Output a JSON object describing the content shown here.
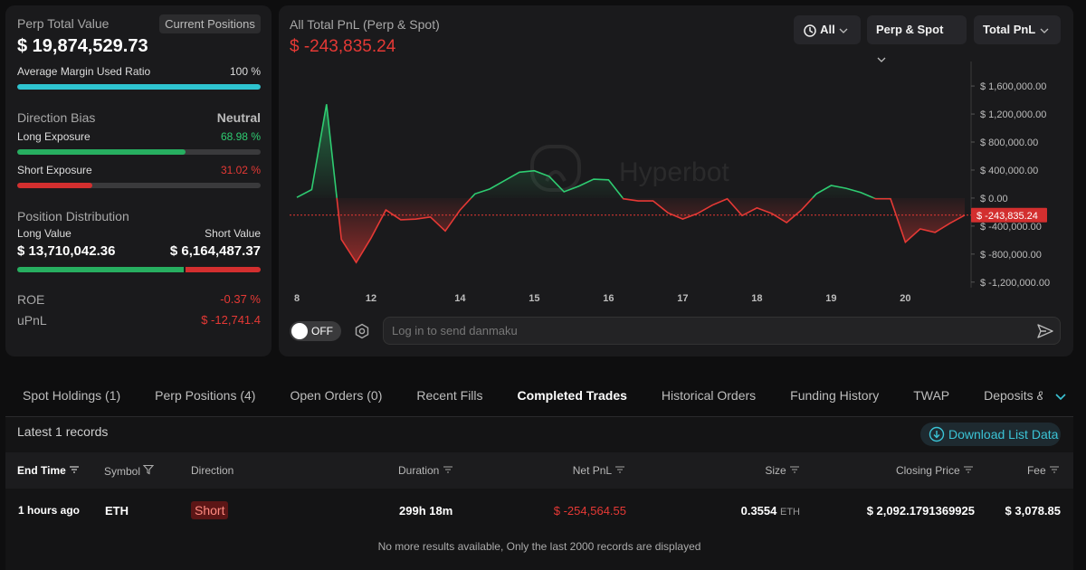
{
  "overview": {
    "perp_total_value_label": "Perp Total Value",
    "current_positions": "Current Positions",
    "perp_total_value": "$ 19,874,529.73",
    "margin": {
      "label": "Average Margin Used Ratio",
      "value": 100,
      "value_label": "100 %"
    },
    "direction_bias_label": "Direction Bias",
    "direction_bias": "Neutral",
    "long_exposure": {
      "label": "Long Exposure",
      "value": 68.98,
      "value_label": "68.98 %"
    },
    "short_exposure": {
      "label": "Short Exposure",
      "value": 31.02,
      "value_label": "31.02 %"
    },
    "distribution": {
      "title": "Position Distribution",
      "long_label": "Long Value",
      "short_label": "Short Value",
      "long_value": 13710042.36,
      "long_value_label": "$ 13,710,042.36",
      "short_value": 6164487.37,
      "short_value_label": "$ 6,164,487.37"
    },
    "roe": {
      "label": "ROE",
      "value": "-0.37 %"
    },
    "upnl": {
      "label": "uPnL",
      "value": "$ -12,741.4"
    }
  },
  "chart_data": {
    "type": "line",
    "title": "All Total PnL (Perp & Spot)",
    "watermark": "Hyperbot",
    "categories": [
      "8",
      null,
      null,
      null,
      null,
      "12",
      null,
      null,
      null,
      null,
      null,
      "14",
      null,
      null,
      null,
      null,
      "15",
      null,
      null,
      null,
      null,
      "16",
      null,
      null,
      null,
      null,
      "17",
      null,
      null,
      null,
      null,
      "18",
      null,
      null,
      null,
      null,
      "19",
      null,
      null,
      null,
      null,
      "20",
      null,
      null,
      null,
      null
    ],
    "values": [
      10000,
      120000,
      1340000,
      -590000,
      -920000,
      -570000,
      -170000,
      -310000,
      -300000,
      -270000,
      -470000,
      -170000,
      60000,
      130000,
      250000,
      370000,
      390000,
      310000,
      90000,
      170000,
      270000,
      260000,
      -10000,
      -40000,
      -40000,
      -210000,
      -300000,
      -220000,
      -100000,
      -10000,
      -250000,
      -140000,
      -220000,
      -350000,
      -170000,
      60000,
      180000,
      140000,
      80000,
      -10000,
      -10000,
      -630000,
      -440000,
      -490000,
      -360000,
      -243835.24
    ],
    "positive_color": "#2ecc71",
    "negative_color": "#e53935",
    "current_value": -243835.24,
    "current_value_label": "$ -243,835.24",
    "ylim": [
      -1280000,
      1950000
    ],
    "yticks": [
      {
        "value": 1600000,
        "label": "$ 1,600,000.00"
      },
      {
        "value": 1200000,
        "label": "$ 1,200,000.00"
      },
      {
        "value": 800000,
        "label": "$ 800,000.00"
      },
      {
        "value": 400000,
        "label": "$ 400,000.00"
      },
      {
        "value": 0,
        "label": "$ 0.00"
      },
      {
        "value": -400000,
        "label": "$ -400,000.00"
      },
      {
        "value": -800000,
        "label": "$ -800,000.00"
      },
      {
        "value": -1200000,
        "label": "$ -1,200,000.00"
      }
    ],
    "grid": false
  },
  "controls": {
    "range": "All",
    "market": "Perp & Spot",
    "metric": "Total PnL",
    "toggle": "OFF",
    "danmaku_placeholder": "Log in to send danmaku"
  },
  "tabs": [
    "Spot Holdings (1)",
    "Perp Positions (4)",
    "Open Orders (0)",
    "Recent Fills",
    "Completed Trades",
    "Historical Orders",
    "Funding History",
    "TWAP",
    "Deposits & Withdrawals"
  ],
  "active_tab": "Completed Trades",
  "records_label": "Latest 1 records",
  "download": "Download List Data",
  "table": {
    "columns": [
      "End Time",
      "Symbol",
      "Direction",
      "Duration",
      "Net PnL",
      "Size",
      "Closing Price",
      "Fee"
    ],
    "rows": [
      {
        "end_time": "1 hours ago",
        "symbol": "ETH",
        "direction": "Short",
        "duration": "299h 18m",
        "net_pnl": "$ -254,564.55",
        "size": "0.3554",
        "size_unit": "ETH",
        "closing_price": "$ 2,092.1791369925",
        "fee": "$ 3,078.85"
      }
    ]
  },
  "footer_note": "No more results available, Only the last 2000 records are displayed"
}
